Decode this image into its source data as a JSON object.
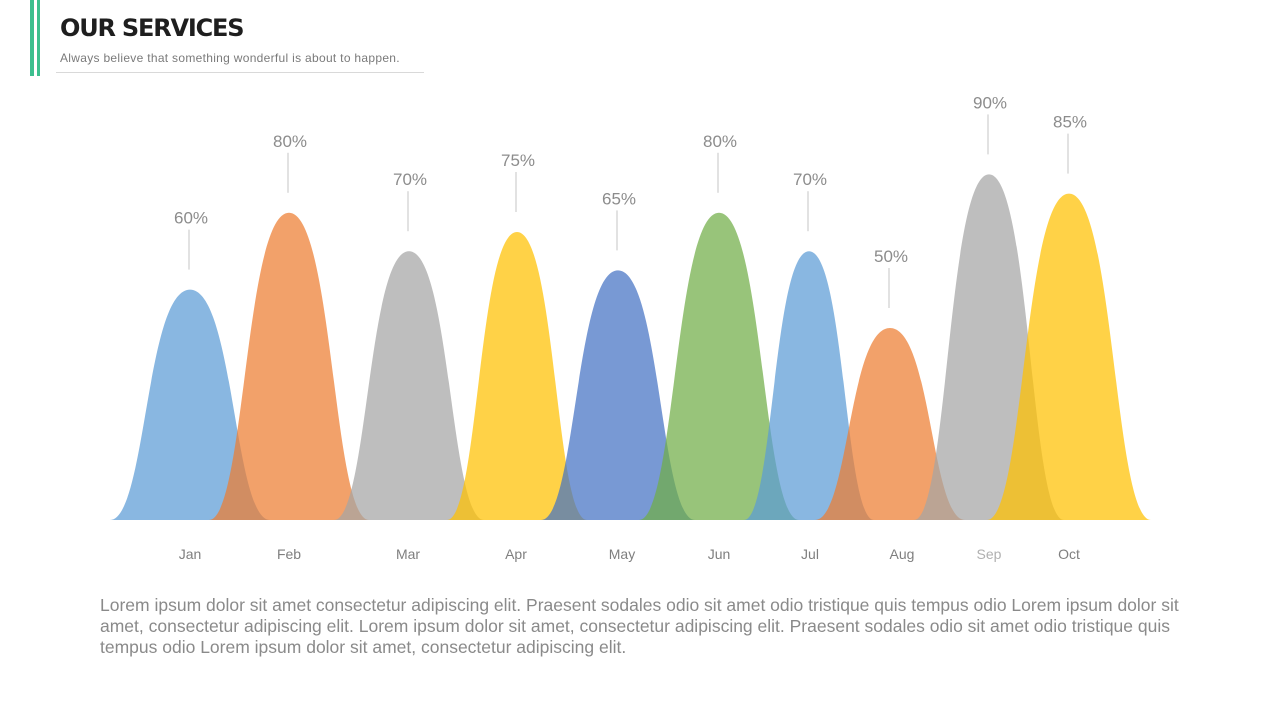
{
  "header": {
    "title": "OUR SERVICES",
    "subtitle": "Always believe that something wonderful is about to happen."
  },
  "body_text": "Lorem ipsum dolor sit amet consectetur adipiscing elit. Praesent sodales odio sit amet odio tristique quis tempus odio Lorem ipsum dolor sit amet, consectetur adipiscing elit. Lorem ipsum dolor sit amet, consectetur adipiscing elit. Praesent sodales odio sit amet odio tristique quis tempus odio Lorem ipsum dolor sit amet, consectetur adipiscing elit.",
  "colors": {
    "accent": "#3dbf8f",
    "blue": "#5b9bd5",
    "orange": "#ed7d31",
    "gray": "#a5a5a5",
    "yellow": "#ffc000",
    "navy": "#4472c4",
    "green": "#70ad47"
  },
  "chart_data": {
    "type": "area",
    "title": "",
    "xlabel": "",
    "ylabel": "",
    "ylim": [
      0,
      100
    ],
    "grid": false,
    "legend": "none",
    "categories": [
      "Jan",
      "Feb",
      "Mar",
      "Apr",
      "May",
      "Jun",
      "Jul",
      "Aug",
      "Sep",
      "Oct"
    ],
    "values": [
      60,
      80,
      70,
      75,
      65,
      80,
      70,
      50,
      90,
      85
    ],
    "labels": [
      "60%",
      "80%",
      "70%",
      "75%",
      "65%",
      "80%",
      "70%",
      "50%",
      "90%",
      "85%"
    ],
    "series_colors": [
      "#5b9bd5",
      "#ed7d31",
      "#a5a5a5",
      "#ffc000",
      "#4472c4",
      "#70ad47",
      "#5b9bd5",
      "#ed7d31",
      "#a5a5a5",
      "#ffc000"
    ]
  }
}
